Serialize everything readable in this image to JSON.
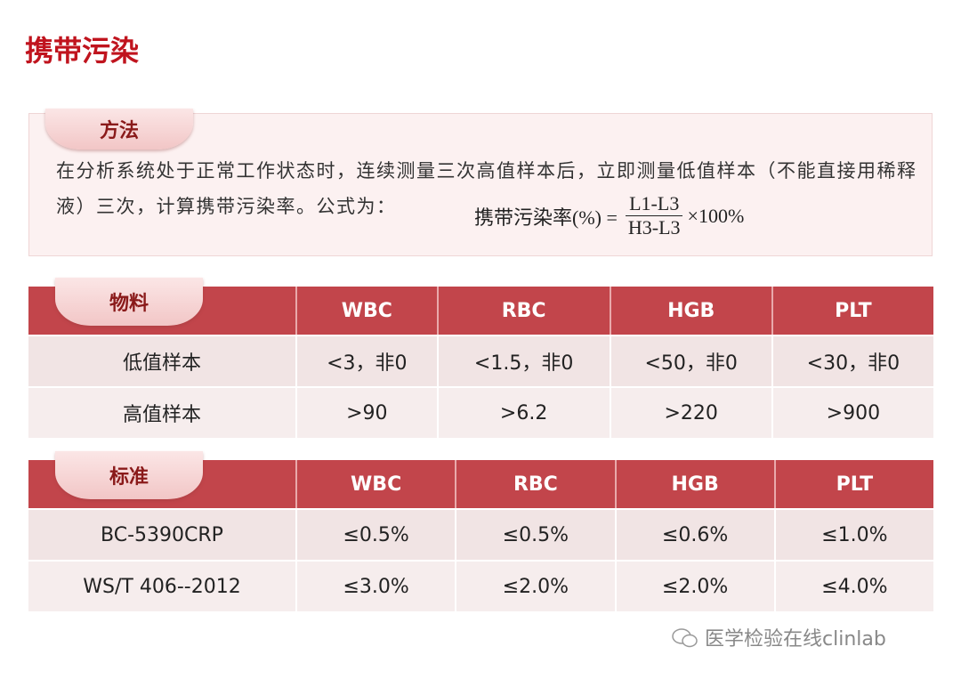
{
  "header": {
    "title": "携带污染"
  },
  "method": {
    "tab": "方法",
    "text": "在分析系统处于正常工作状态时，连续测量三次高值样本后，立即测量低值样本（不能直接用稀释液）三次，计算携带污染率。公式为：",
    "formula": {
      "lhs": "携带污染率(%) =",
      "numerator": "L1-L3",
      "denominator": "H3-L3",
      "factor": "×100%"
    }
  },
  "tables": [
    {
      "header": [
        "物料",
        "WBC",
        "RBC",
        "HGB",
        "PLT"
      ],
      "rows": [
        [
          "低值样本",
          "<3，非0",
          "<1.5，非0",
          "<50，非0",
          "<30，非0"
        ],
        [
          "高值样本",
          ">90",
          ">6.2",
          ">220",
          ">900"
        ]
      ]
    },
    {
      "header": [
        "标准",
        "WBC",
        "RBC",
        "HGB",
        "PLT"
      ],
      "rows": [
        [
          "BC-5390CRP",
          "≤0.5%",
          "≤0.5%",
          "≤0.6%",
          "≤1.0%"
        ],
        [
          "WS/T 406--2012",
          "≤3.0%",
          "≤2.0%",
          "≤2.0%",
          "≤4.0%"
        ]
      ]
    }
  ],
  "watermark": "医学检验在线clinlab"
}
